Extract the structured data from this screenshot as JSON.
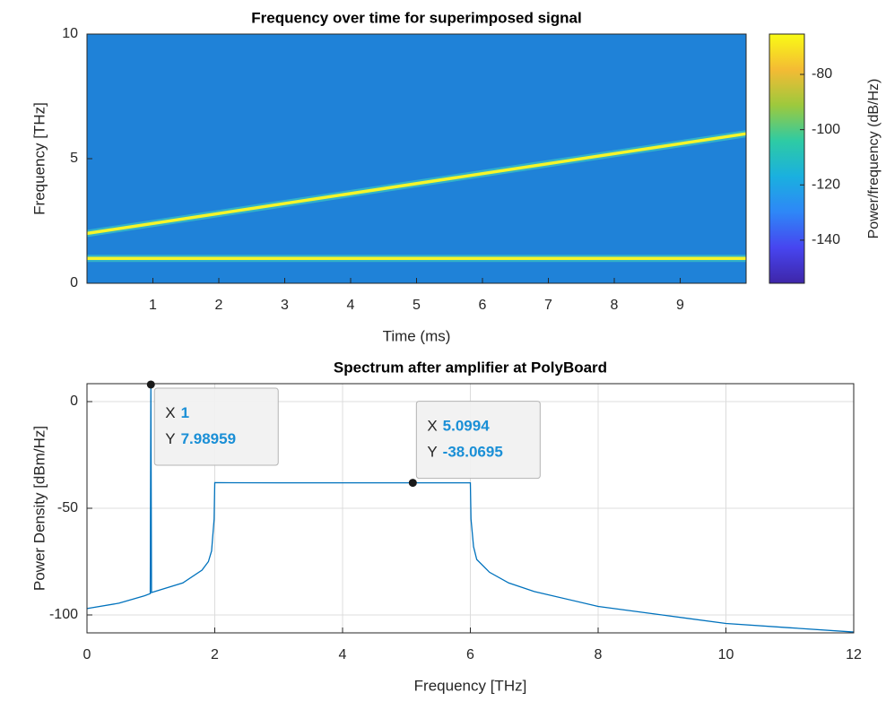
{
  "chart_data": [
    {
      "type": "spectrogram",
      "title": "Frequency over time for superimposed signal",
      "xlabel": "Time (ms)",
      "ylabel": "Frequency [THz]",
      "xlim": [
        0,
        10
      ],
      "xticks": [
        1,
        2,
        3,
        4,
        5,
        6,
        7,
        8,
        9
      ],
      "ylim": [
        0,
        10
      ],
      "yticks": [
        0,
        5,
        10
      ],
      "background_color": "#1f82d8",
      "series": [
        {
          "color": "#f5f52a",
          "x": [
            0,
            10
          ],
          "values": [
            2,
            6
          ]
        },
        {
          "color": "#f5f52a",
          "x": [
            0,
            10
          ],
          "values": [
            1,
            1
          ]
        }
      ],
      "colorbar": {
        "label": "Power/frequency (dB/Hz)",
        "clim": [
          -155.6,
          -65.4
        ],
        "ticks": [
          -140,
          -120,
          -100,
          -80
        ],
        "colormap": [
          "#3e26a8",
          "#4745f0",
          "#2e87f7",
          "#1ab0df",
          "#2ecba4",
          "#9dc93d",
          "#f4bb34",
          "#f9fb15"
        ]
      }
    },
    {
      "type": "line",
      "title": "Spectrum after amplifier at PolyBoard",
      "xlabel": "Frequency [THz]",
      "ylabel": "Power Density [dBm/Hz]",
      "xlim": [
        0,
        12
      ],
      "xticks": [
        0,
        2,
        4,
        6,
        8,
        10,
        12
      ],
      "ylim": [
        -108.4,
        8.4
      ],
      "yticks": [
        -100,
        -50,
        0
      ],
      "grid": true,
      "series": [
        {
          "color": "#0072bd",
          "x": [
            0,
            0.5,
            0.9,
            0.99,
            1,
            1.01,
            1.5,
            1.8,
            1.9,
            1.95,
            1.99,
            2,
            3,
            4,
            5,
            5.0994,
            6,
            6.01,
            6.05,
            6.1,
            6.3,
            6.6,
            7,
            8,
            9,
            10,
            11,
            12
          ],
          "values": [
            -97,
            -94.5,
            -91,
            -90,
            7.98959,
            -89.5,
            -85,
            -79,
            -75,
            -70,
            -55,
            -38,
            -38.07,
            -38.07,
            -38.07,
            -38.0695,
            -38.07,
            -55,
            -68,
            -74,
            -80,
            -85,
            -89,
            -96,
            -100,
            -104,
            -106,
            -108
          ]
        }
      ],
      "datatips": [
        {
          "x_label": "X",
          "x": 1,
          "y_label": "Y",
          "y": 7.98959
        },
        {
          "x_label": "X",
          "x": 5.0994,
          "y_label": "Y",
          "y": -38.0695
        }
      ]
    }
  ]
}
